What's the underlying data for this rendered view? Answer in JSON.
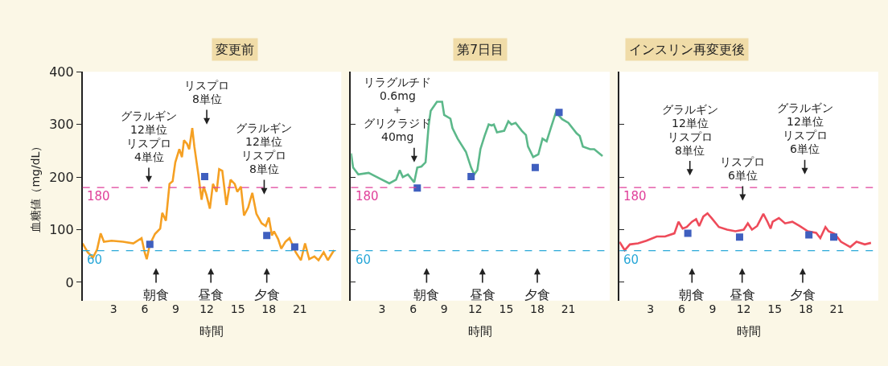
{
  "chart_data": [
    {
      "type": "line",
      "title": "変更前",
      "xlabel": "時間",
      "ylabel": "血糖値（mg/dL）",
      "xlim": [
        0,
        25
      ],
      "ylim": [
        -35,
        400
      ],
      "xticks": [
        3,
        6,
        9,
        12,
        15,
        18,
        21
      ],
      "yticks": [
        0,
        100,
        200,
        300,
        400
      ],
      "grid": false,
      "series": [
        {
          "color": "#f5a023",
          "marker": "none",
          "x": [
            0,
            0.5,
            1.0,
            1.4,
            1.75,
            2.06,
            2.8,
            3.9,
            4.9,
            5.7,
            6.0,
            6.2,
            6.5,
            7.0,
            7.5,
            7.7,
            8.05,
            8.4,
            8.7,
            8.96,
            9.35,
            9.6,
            9.8,
            10.1,
            10.3,
            10.6,
            10.8,
            11.2,
            11.5,
            11.7,
            11.95,
            12.3,
            12.6,
            12.95,
            13.2,
            13.5,
            13.9,
            14.3,
            14.7,
            14.95,
            15.3,
            15.6,
            16.0,
            16.4,
            16.8,
            17.3,
            17.7,
            18.0,
            18.3,
            18.5,
            18.9,
            19.2,
            19.6,
            20.0,
            20.6,
            21.1,
            21.5,
            21.9,
            22.4,
            22.8,
            23.3,
            23.7,
            24.3
          ],
          "values": [
            74,
            57,
            47,
            62,
            93,
            77,
            79,
            77,
            74,
            84,
            57,
            44,
            72,
            92,
            102,
            132,
            117,
            187,
            192,
            228,
            253,
            238,
            270,
            263,
            253,
            293,
            258,
            203,
            157,
            182,
            167,
            140,
            187,
            172,
            215,
            212,
            147,
            195,
            187,
            172,
            182,
            127,
            142,
            170,
            130,
            112,
            107,
            123,
            89,
            97,
            82,
            64,
            77,
            84,
            57,
            42,
            74,
            44,
            49,
            42,
            57,
            42,
            61
          ]
        },
        {
          "type": "scatter",
          "color": "#3f5fbf",
          "marker": "square",
          "x": [
            6.5,
            11.8,
            17.8,
            20.5
          ],
          "values": [
            72,
            201,
            89,
            67
          ]
        }
      ],
      "ref_lines": [
        {
          "axis": "y",
          "value": 180,
          "label": "180",
          "color": "#e0409a",
          "line_style": "dashed"
        },
        {
          "axis": "y",
          "value": 60,
          "label": "60",
          "color": "#2aa8d8",
          "line_style": "dashed"
        }
      ],
      "annotations": [
        "グラルギン",
        "12単位",
        "リスプロ",
        "4単位",
        "リスプロ",
        "8単位",
        "グラルギン",
        "12単位",
        "リスプロ",
        "8単位",
        "朝食",
        "昼食",
        "夕食"
      ]
    },
    {
      "type": "line",
      "title": "第7日目",
      "xlabel": "時間",
      "xlim": [
        0,
        25
      ],
      "ylim": [
        -35,
        400
      ],
      "xticks": [
        3,
        6,
        9,
        12,
        15,
        18,
        21
      ],
      "yticks": [
        0,
        100,
        200,
        300,
        400
      ],
      "grid": false,
      "tick_labels": "x",
      "series": [
        {
          "color": "#5cb88a",
          "marker": "none",
          "x": [
            0,
            0.2,
            0.7,
            1.7,
            2.8,
            3.7,
            4.35,
            4.7,
            5.0,
            5.5,
            5.9,
            6.1,
            6.4,
            6.8,
            7.2,
            7.5,
            7.7,
            8.3,
            8.8,
            9.0,
            9.6,
            9.8,
            10.3,
            11.1,
            11.6,
            11.9,
            12.2,
            12.5,
            12.9,
            13.3,
            13.6,
            13.8,
            14.1,
            14.8,
            15.2,
            15.5,
            15.9,
            16.5,
            16.9,
            17.1,
            17.6,
            18.1,
            18.5,
            18.9,
            19.3,
            19.8,
            20.4,
            21.0,
            21.8,
            22.1,
            22.4,
            23.1,
            23.5,
            24.3
          ],
          "values": [
            245,
            218,
            205,
            208,
            197,
            188,
            195,
            213,
            200,
            205,
            195,
            190,
            218,
            220,
            228,
            298,
            326,
            343,
            343,
            318,
            311,
            293,
            273,
            248,
            218,
            205,
            213,
            253,
            278,
            300,
            298,
            300,
            285,
            288,
            306,
            300,
            303,
            288,
            280,
            258,
            238,
            243,
            273,
            268,
            293,
            323,
            310,
            303,
            283,
            278,
            258,
            253,
            253,
            240
          ]
        },
        {
          "type": "scatter",
          "color": "#3f5fbf",
          "marker": "square",
          "x": [
            6.4,
            11.6,
            17.8,
            20.1
          ],
          "values": [
            179,
            201,
            218,
            323
          ]
        }
      ],
      "ref_lines": [
        {
          "axis": "y",
          "value": 180,
          "label": "180",
          "color": "#e0409a",
          "line_style": "dashed"
        },
        {
          "axis": "y",
          "value": 60,
          "label": "60",
          "color": "#2aa8d8",
          "line_style": "dashed"
        }
      ],
      "annotations": [
        "リラグルチド",
        "0.6mg",
        "＋",
        "グリクラジド",
        "40mg",
        "朝食",
        "昼食",
        "夕食"
      ]
    },
    {
      "type": "line",
      "title": "インスリン再変更後",
      "xlabel": "時間",
      "xlim": [
        0,
        25
      ],
      "ylim": [
        -35,
        400
      ],
      "xticks": [
        3,
        6,
        9,
        12,
        15,
        18,
        21
      ],
      "yticks": [
        0,
        100,
        200,
        300,
        400
      ],
      "grid": false,
      "tick_labels": "x",
      "series": [
        {
          "color": "#ee4b5a",
          "marker": "none",
          "x": [
            0,
            0.5,
            1.0,
            1.8,
            2.6,
            3.6,
            4.4,
            5.3,
            5.7,
            6.1,
            6.5,
            7.0,
            7.4,
            7.7,
            8.1,
            8.5,
            8.9,
            9.6,
            10.4,
            11.2,
            12.0,
            12.4,
            12.8,
            13.3,
            13.9,
            14.3,
            14.6,
            14.8,
            15.4,
            16.0,
            16.7,
            17.4,
            18.2,
            19.0,
            19.4,
            19.9,
            20.2,
            20.8,
            21.4,
            22.3,
            22.9,
            23.7,
            24.3
          ],
          "values": [
            77,
            61,
            72,
            74,
            79,
            87,
            87,
            93,
            115,
            102,
            105,
            115,
            120,
            107,
            125,
            131,
            122,
            105,
            100,
            97,
            100,
            112,
            100,
            107,
            130,
            115,
            102,
            115,
            122,
            112,
            115,
            107,
            97,
            94,
            84,
            105,
            97,
            92,
            77,
            67,
            77,
            72,
            75
          ]
        },
        {
          "type": "scatter",
          "color": "#3f5fbf",
          "marker": "square",
          "x": [
            6.6,
            11.6,
            18.3,
            20.7
          ],
          "values": [
            93,
            86,
            90,
            86
          ]
        }
      ],
      "ref_lines": [
        {
          "axis": "y",
          "value": 180,
          "label": "180",
          "color": "#e0409a",
          "line_style": "dashed"
        },
        {
          "axis": "y",
          "value": 60,
          "label": "60",
          "color": "#2aa8d8",
          "line_style": "dashed"
        }
      ],
      "annotations": [
        "グラルギン",
        "12単位",
        "リスプロ",
        "8単位",
        "リスプロ",
        "6単位",
        "グラルギン",
        "12単位",
        "リスプロ",
        "6単位",
        "朝食",
        "昼食",
        "夕食"
      ]
    }
  ]
}
